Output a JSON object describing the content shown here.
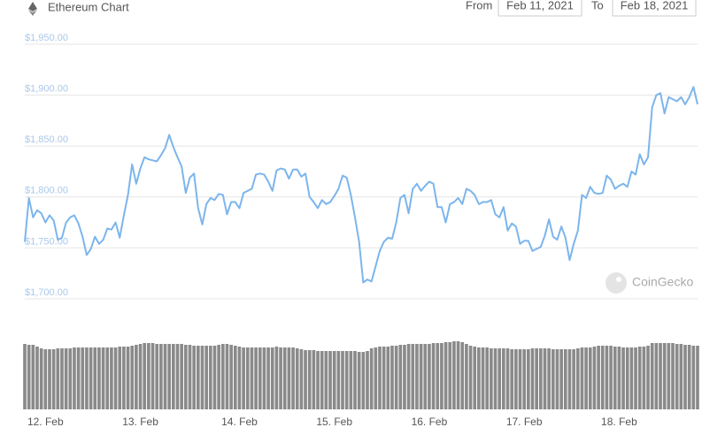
{
  "chart_data": {
    "type": "line",
    "title": "Ethereum Chart",
    "categories": [
      null,
      null,
      null,
      null,
      null,
      "12. Feb",
      null,
      null,
      null,
      null,
      null,
      null,
      null,
      null,
      null,
      null,
      null,
      null,
      null,
      null,
      null,
      null,
      null,
      null,
      null,
      null,
      null,
      null,
      "13. Feb",
      null,
      null,
      null,
      null,
      null,
      null,
      null,
      null,
      null,
      null,
      null,
      null,
      null,
      null,
      null,
      null,
      null,
      null,
      null,
      null,
      null,
      null,
      null,
      "14. Feb",
      null,
      null,
      null,
      null,
      null,
      null,
      null,
      null,
      null,
      null,
      null,
      null,
      null,
      null,
      null,
      null,
      null,
      null,
      null,
      null,
      null,
      null,
      "15. Feb",
      null,
      null,
      null,
      null,
      null,
      null,
      null,
      null,
      null,
      null,
      null,
      null,
      null,
      null,
      null,
      null,
      null,
      null,
      null,
      null,
      null,
      null,
      "16. Feb",
      null,
      null,
      null,
      null,
      null,
      null,
      null,
      null,
      null,
      null,
      null,
      null,
      null,
      null,
      null,
      null,
      null,
      null,
      null,
      null,
      null,
      null,
      "17. Feb",
      null,
      null,
      null,
      null,
      null,
      null,
      null,
      null,
      null,
      null,
      null,
      null,
      null,
      null,
      null,
      null,
      null,
      null,
      null,
      null,
      null,
      null,
      "18. Feb",
      null,
      null,
      null,
      null,
      null,
      null,
      null,
      null,
      null,
      null,
      null,
      null,
      null,
      null,
      null,
      null,
      null,
      null,
      null
    ],
    "series": [
      {
        "color": "#7cb5ec",
        "values": [
          1756,
          1799,
          1780,
          1787,
          1784,
          1775,
          1782,
          1777,
          1758,
          1760,
          1775,
          1780,
          1782,
          1774,
          1761,
          1743,
          1749,
          1761,
          1754,
          1758,
          1769,
          1768,
          1775,
          1760,
          1782,
          1802,
          1832,
          1813,
          1828,
          1839,
          1837,
          1836,
          1835,
          1841,
          1848,
          1861,
          1849,
          1839,
          1830,
          1804,
          1819,
          1823,
          1789,
          1773,
          1793,
          1799,
          1797,
          1803,
          1802,
          1783,
          1795,
          1795,
          1789,
          1804,
          1806,
          1808,
          1822,
          1823,
          1822,
          1815,
          1806,
          1826,
          1828,
          1827,
          1818,
          1827,
          1827,
          1820,
          1823,
          1800,
          1795,
          1789,
          1797,
          1793,
          1795,
          1801,
          1808,
          1821,
          1819,
          1802,
          1780,
          1756,
          1716,
          1719,
          1717,
          1732,
          1747,
          1756,
          1760,
          1759,
          1775,
          1799,
          1802,
          1784,
          1808,
          1813,
          1806,
          1811,
          1815,
          1813,
          1790,
          1790,
          1775,
          1793,
          1795,
          1799,
          1793,
          1808,
          1806,
          1802,
          1793,
          1795,
          1795,
          1797,
          1783,
          1780,
          1790,
          1767,
          1774,
          1771,
          1754,
          1757,
          1757,
          1747,
          1749,
          1751,
          1762,
          1778,
          1761,
          1758,
          1771,
          1760,
          1738,
          1754,
          1767,
          1802,
          1799,
          1810,
          1804,
          1803,
          1804,
          1821,
          1817,
          1808,
          1811,
          1813,
          1810,
          1825,
          1822,
          1842,
          1832,
          1839,
          1888,
          1900,
          1902,
          1882,
          1898,
          1896,
          1894,
          1898,
          1891,
          1898,
          1908,
          1891
        ]
      },
      {
        "color": "#8a8a8a",
        "axis": "y2",
        "values": [
          74,
          73,
          73,
          71,
          69,
          68,
          68,
          68,
          69,
          69,
          69,
          69,
          70,
          70,
          70,
          70,
          70,
          70,
          70,
          70,
          70,
          70,
          70,
          71,
          71,
          71,
          72,
          73,
          74,
          75,
          75,
          75,
          74,
          74,
          74,
          74,
          74,
          74,
          74,
          73,
          73,
          72,
          72,
          72,
          72,
          72,
          72,
          73,
          74,
          74,
          73,
          72,
          71,
          70,
          70,
          70,
          70,
          70,
          70,
          70,
          70,
          71,
          70,
          70,
          70,
          70,
          69,
          68,
          67,
          67,
          67,
          66,
          66,
          66,
          66,
          66,
          66,
          66,
          66,
          66,
          66,
          65,
          65,
          66,
          69,
          70,
          71,
          71,
          71,
          72,
          72,
          73,
          73,
          74,
          74,
          74,
          74,
          74,
          74,
          75,
          75,
          75,
          76,
          76,
          77,
          77,
          76,
          74,
          72,
          71,
          70,
          70,
          70,
          69,
          69,
          69,
          69,
          69,
          68,
          68,
          68,
          68,
          68,
          69,
          69,
          69,
          69,
          69,
          68,
          68,
          68,
          68,
          68,
          68,
          69,
          70,
          70,
          70,
          71,
          72,
          72,
          72,
          72,
          71,
          71,
          70,
          70,
          70,
          70,
          71,
          71,
          72,
          75,
          75,
          75,
          75,
          75,
          75,
          74,
          74,
          73,
          73,
          72,
          72
        ]
      }
    ],
    "ylim": [
      1690,
      1960
    ],
    "yticks": [
      {
        "value": 1700,
        "label": "$1,700.00"
      },
      {
        "value": 1750,
        "label": "$1,750.00"
      },
      {
        "value": 1800,
        "label": "$1,800.00"
      },
      {
        "value": 1850,
        "label": "$1,850.00"
      },
      {
        "value": 1900,
        "label": "$1,900.00"
      },
      {
        "value": 1950,
        "label": "$1,950.00"
      }
    ],
    "y2lim": [
      0,
      80
    ],
    "grid": true
  },
  "controls": {
    "from_label": "From",
    "from_date": "Feb 11, 2021",
    "to_label": "To",
    "to_date": "Feb 18, 2021"
  },
  "watermark": "CoinGecko"
}
